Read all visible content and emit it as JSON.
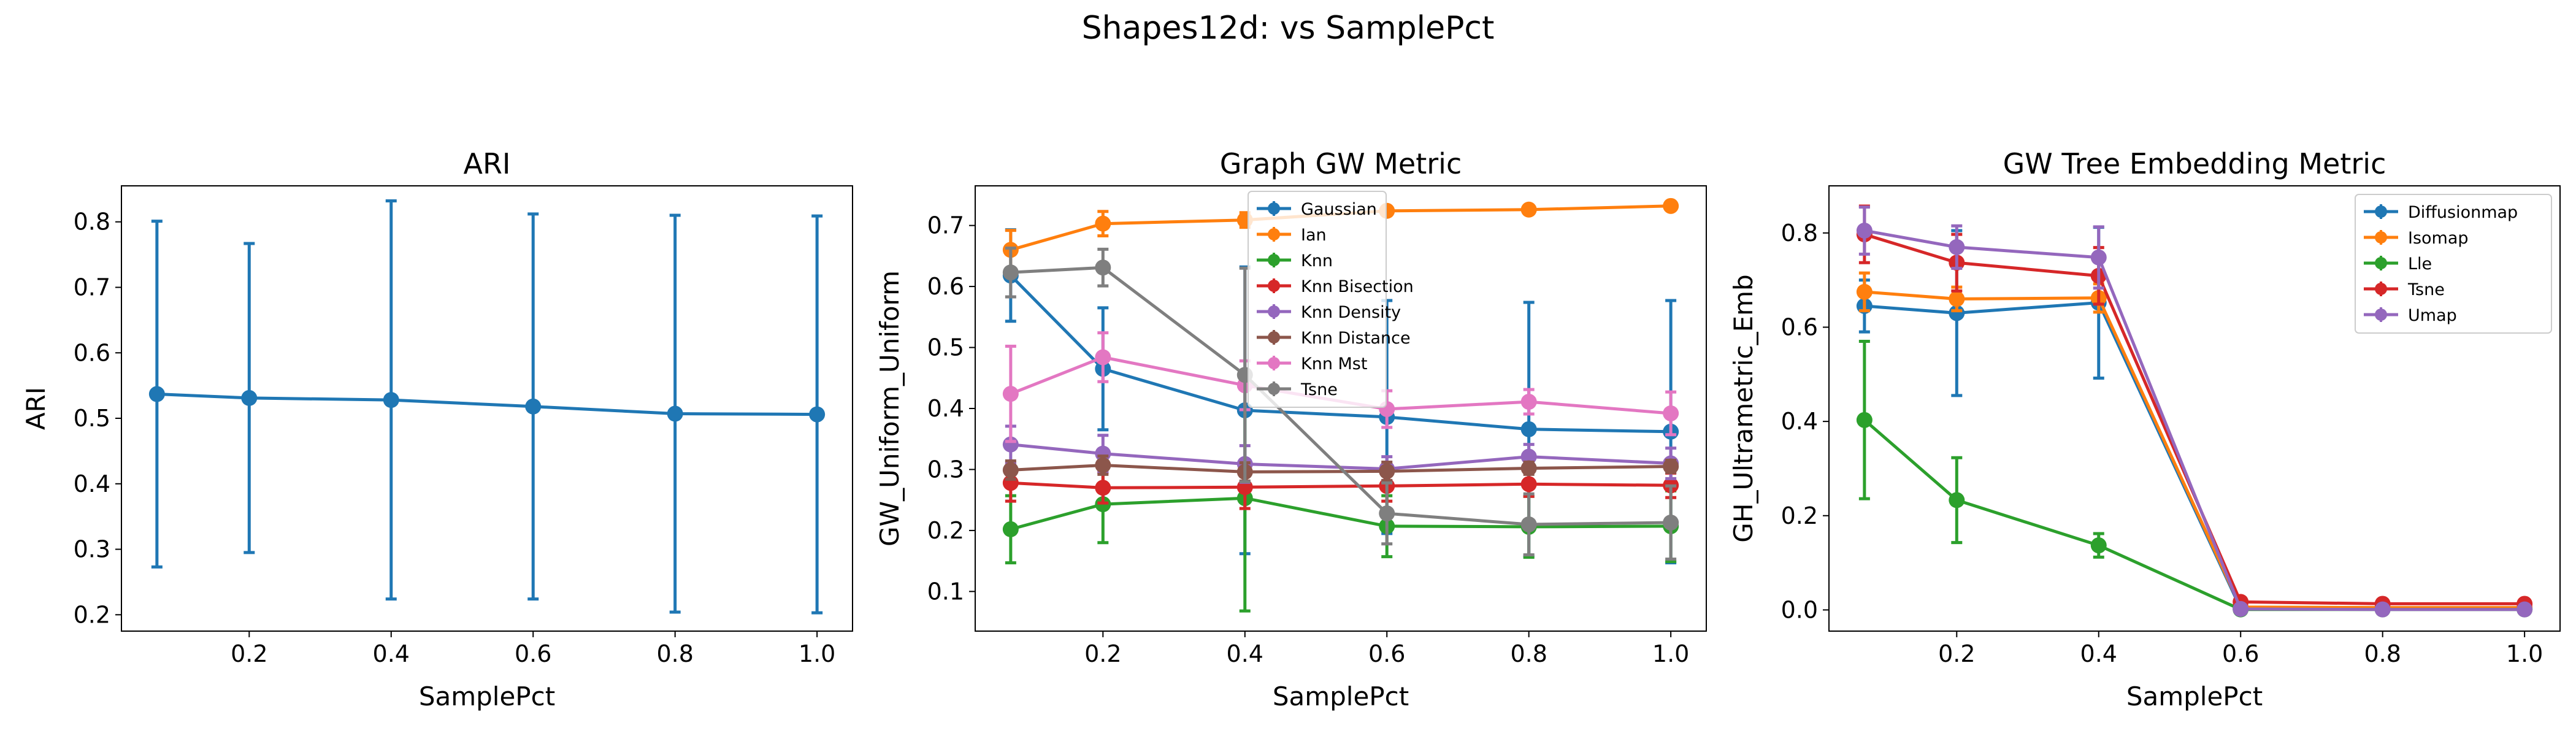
{
  "figure": {
    "title": "Shapes12d: vs SamplePct"
  },
  "colors": [
    "#1f77b4",
    "#ff7f0e",
    "#2ca02c",
    "#d62728",
    "#9467bd",
    "#8c564b",
    "#e377c2",
    "#7f7f7f"
  ],
  "chart_data": [
    {
      "type": "line",
      "title": "ARI",
      "xlabel": "SamplePct",
      "ylabel": "ARI",
      "x": [
        0.07,
        0.2,
        0.4,
        0.6,
        0.8,
        1.0
      ],
      "xlim": [
        0.02,
        1.05
      ],
      "ylim": [
        0.175,
        0.855
      ],
      "xticks": [
        0.2,
        0.4,
        0.6,
        0.8,
        1.0
      ],
      "xtick_labels": [
        "0.2",
        "0.4",
        "0.6",
        "0.8",
        "1.0"
      ],
      "yticks": [
        0.2,
        0.3,
        0.4,
        0.5,
        0.6,
        0.7,
        0.8
      ],
      "ytick_labels": [
        "0.2",
        "0.3",
        "0.4",
        "0.5",
        "0.6",
        "0.7",
        "0.8"
      ],
      "grid": false,
      "series": [
        {
          "values": [
            0.537,
            0.531,
            0.528,
            0.518,
            0.507,
            0.506
          ],
          "err": [
            0.264,
            0.236,
            0.304,
            0.294,
            0.303,
            0.303
          ]
        }
      ]
    },
    {
      "type": "line",
      "title": "Graph GW Metric",
      "xlabel": "SamplePct",
      "ylabel": "GW_Uniform_Uniform",
      "x": [
        0.07,
        0.2,
        0.4,
        0.6,
        0.8,
        1.0
      ],
      "xlim": [
        0.02,
        1.05
      ],
      "ylim": [
        0.035,
        0.765
      ],
      "xticks": [
        0.2,
        0.4,
        0.6,
        0.8,
        1.0
      ],
      "xtick_labels": [
        "0.2",
        "0.4",
        "0.6",
        "0.8",
        "1.0"
      ],
      "yticks": [
        0.1,
        0.2,
        0.3,
        0.4,
        0.5,
        0.6,
        0.7
      ],
      "ytick_labels": [
        "0.1",
        "0.2",
        "0.3",
        "0.4",
        "0.5",
        "0.6",
        "0.7"
      ],
      "grid": false,
      "legend": "upper-center",
      "series": [
        {
          "name": "Gaussian",
          "values": [
            0.618,
            0.465,
            0.397,
            0.386,
            0.366,
            0.362
          ],
          "err": [
            0.075,
            0.1,
            0.235,
            0.191,
            0.208,
            0.215
          ]
        },
        {
          "name": "Ian",
          "values": [
            0.66,
            0.703,
            0.709,
            0.724,
            0.726,
            0.732
          ],
          "err": [
            0.032,
            0.02,
            0.012,
            0.004,
            0.004,
            0.004
          ]
        },
        {
          "name": "Knn",
          "values": [
            0.202,
            0.243,
            0.253,
            0.207,
            0.206,
            0.207
          ],
          "err": [
            0.055,
            0.063,
            0.185,
            0.05,
            0.05,
            0.058
          ]
        },
        {
          "name": "Knn Bisection",
          "values": [
            0.278,
            0.27,
            0.271,
            0.273,
            0.276,
            0.274
          ],
          "err": [
            0.03,
            0.025,
            0.035,
            0.025,
            0.02,
            0.02
          ]
        },
        {
          "name": "Knn Density",
          "values": [
            0.341,
            0.326,
            0.309,
            0.301,
            0.321,
            0.31
          ],
          "err": [
            0.03,
            0.03,
            0.03,
            0.02,
            0.02,
            0.025
          ]
        },
        {
          "name": "Knn Distance",
          "values": [
            0.299,
            0.307,
            0.296,
            0.297,
            0.302,
            0.305
          ],
          "err": [
            0.015,
            0.015,
            0.015,
            0.015,
            0.01,
            0.01
          ]
        },
        {
          "name": "Knn Mst",
          "values": [
            0.424,
            0.484,
            0.438,
            0.399,
            0.411,
            0.392
          ],
          "err": [
            0.078,
            0.04,
            0.04,
            0.03,
            0.02,
            0.035
          ]
        },
        {
          "name": "Tsne",
          "values": [
            0.623,
            0.631,
            0.455,
            0.228,
            0.21,
            0.213
          ],
          "err": [
            0.04,
            0.03,
            0.175,
            0.05,
            0.05,
            0.06
          ]
        }
      ]
    },
    {
      "type": "line",
      "title": "GW Tree Embedding Metric",
      "xlabel": "SamplePct",
      "ylabel": "GH_Ultrametric_Emb",
      "x": [
        0.07,
        0.2,
        0.4,
        0.6,
        0.8,
        1.0
      ],
      "xlim": [
        0.02,
        1.05
      ],
      "ylim": [
        -0.045,
        0.9
      ],
      "xticks": [
        0.2,
        0.4,
        0.6,
        0.8,
        1.0
      ],
      "xtick_labels": [
        "0.2",
        "0.4",
        "0.6",
        "0.8",
        "1.0"
      ],
      "yticks": [
        0.0,
        0.2,
        0.4,
        0.6,
        0.8
      ],
      "ytick_labels": [
        "0.0",
        "0.2",
        "0.4",
        "0.6",
        "0.8"
      ],
      "grid": false,
      "legend": "upper-right",
      "series": [
        {
          "name": "Diffusionmap",
          "values": [
            0.645,
            0.63,
            0.652,
            0.003,
            0.002,
            0.002
          ],
          "err": [
            0.055,
            0.175,
            0.16,
            0.004,
            0.003,
            0.003
          ]
        },
        {
          "name": "Isomap",
          "values": [
            0.675,
            0.66,
            0.662,
            0.006,
            0.005,
            0.005
          ],
          "err": [
            0.04,
            0.025,
            0.03,
            0.004,
            0.003,
            0.003
          ]
        },
        {
          "name": "Lle",
          "values": [
            0.403,
            0.233,
            0.137,
            0.001,
            0.001,
            0.001
          ],
          "err": [
            0.167,
            0.09,
            0.025,
            0.002,
            0.002,
            0.002
          ]
        },
        {
          "name": "Tsne",
          "values": [
            0.797,
            0.737,
            0.709,
            0.017,
            0.013,
            0.013
          ],
          "err": [
            0.06,
            0.06,
            0.06,
            0.005,
            0.004,
            0.004
          ]
        },
        {
          "name": "Umap",
          "values": [
            0.805,
            0.77,
            0.748,
            0.002,
            0.001,
            0.001
          ],
          "err": [
            0.05,
            0.045,
            0.065,
            0.003,
            0.002,
            0.002
          ]
        }
      ]
    }
  ]
}
